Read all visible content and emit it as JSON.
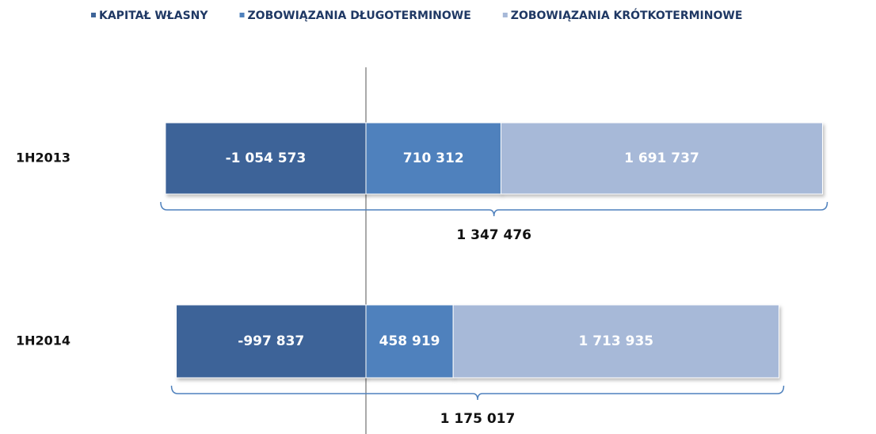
{
  "chart_data": {
    "type": "bar",
    "orientation": "horizontal",
    "stacked": true,
    "categories": [
      "1H2013",
      "1H2014"
    ],
    "series": [
      {
        "name": "KAPITAŁ WŁASNY",
        "color": "#3e6498",
        "values": [
          -1054573,
          -997837
        ],
        "value_labels": [
          "-1 054 573",
          "-997 837"
        ]
      },
      {
        "name": "ZOBOWIĄZANIA DŁUGOTERMINOWE",
        "color": "#4f81bd",
        "values": [
          710312,
          458919
        ],
        "value_labels": [
          "710 312",
          "458 919"
        ]
      },
      {
        "name": "ZOBOWIĄZANIA KRÓTKOTERMINOWE",
        "color": "#a7b9d8",
        "values": [
          1691737,
          1713935
        ],
        "value_labels": [
          "1 691 737",
          "1 713 935"
        ]
      }
    ],
    "totals": {
      "values": [
        1347476,
        1175017
      ],
      "value_labels": [
        "1 347 476",
        "1 175 017"
      ]
    },
    "xlim": [
      -1400000,
      2600000
    ],
    "legend": "top"
  }
}
